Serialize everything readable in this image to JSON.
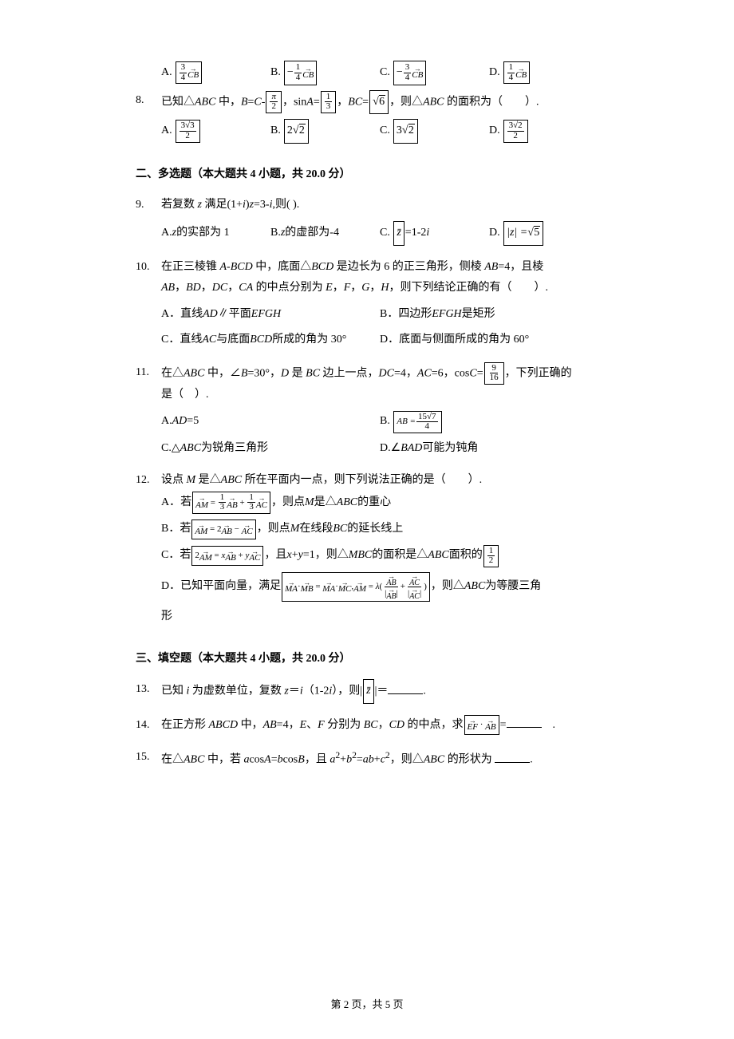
{
  "q7": {
    "A_label": "A.",
    "B_label": "B.",
    "C_label": "C.",
    "D_label": "D.",
    "A_num": "3",
    "A_den": "4",
    "A_sub": "CB",
    "B_num": "1",
    "B_den": "4",
    "B_sub": "CB",
    "B_pre": "−",
    "C_num": "3",
    "C_den": "4",
    "C_sub": "CB",
    "C_pre": "−",
    "D_num": "1",
    "D_den": "4",
    "D_sub": "CB"
  },
  "q8": {
    "num": "8.",
    "t1": "已知△",
    "t2": "ABC",
    "t3": " 中，",
    "t4": "B",
    "t5": "=",
    "t6": "C",
    "t7": "-",
    "f1n": "π",
    "f1d": "2",
    "t8": "，sin",
    "t9": "A",
    "t10": "=",
    "f2n": "1",
    "f2d": "3",
    "t11": "，",
    "t12": "BC",
    "t13": "=",
    "sq": "6",
    "t14": "，则△",
    "t15": "ABC",
    "t16": " 的面积为（　　）.",
    "A_label": "A.",
    "B_label": "B.",
    "C_label": "C.",
    "D_label": "D.",
    "A_num": "3√3",
    "A_den": "2",
    "B_v1": "2",
    "B_v2": "2",
    "C_v1": "3",
    "C_v2": "2",
    "D_num": "3√2",
    "D_den": "2"
  },
  "section2": "二、多选题（本大题共 4 小题，共 20.0 分）",
  "q9": {
    "num": "9.",
    "text": "若复数 ",
    "z": "z",
    "t2": " 满足(1+",
    "i1": "i",
    "t3": ")",
    "z2": "z",
    "t4": "=3-",
    "i2": "i",
    "t5": ",则(  ).",
    "A_label": "A.",
    "A_t1": " z",
    "A_t2": " 的实部为 1",
    "B_label": "B.",
    "B_t1": " z",
    "B_t2": " 的虚部为-4",
    "C_label": "C.",
    "C_box": "z̄",
    "C_t": "=1-2",
    "C_i": "i",
    "D_label": "D.",
    "D_box1": "|z| = ",
    "D_sq": "5"
  },
  "q10": {
    "num": "10.",
    "l1a": "在正三棱锥 ",
    "l1b": "A-BCD",
    "l1c": " 中，底面△",
    "l1d": "BCD",
    "l1e": " 是边长为 6 的正三角形，侧棱 ",
    "l1f": "AB",
    "l1g": "=4，且棱",
    "l2a": "AB",
    "l2b": "，",
    "l2c": "BD",
    "l2d": "，",
    "l2e": "DC",
    "l2f": "，",
    "l2g": "CA",
    "l2h": " 的中点分别为 ",
    "l2i": "E",
    "l2j": "，",
    "l2k": "F",
    "l2l": "，",
    "l2m": "G",
    "l2n": "，",
    "l2o": "H",
    "l2p": "，则下列结论正确的有（　　）.",
    "A_label": "A．",
    "A_t1": "直线 ",
    "A_t2": "AD",
    "A_t3": "∥平面 ",
    "A_t4": "EFGH",
    "B_label": "B．",
    "B_t1": "四边形 ",
    "B_t2": "EFGH",
    "B_t3": " 是矩形",
    "C_label": "C．",
    "C_t1": "直线 ",
    "C_t2": "AC",
    "C_t3": " 与底面 ",
    "C_t4": "BCD",
    "C_t5": " 所成的角为 30°",
    "D_label": "D．",
    "D_t": "底面与侧面所成的角为 60°"
  },
  "q11": {
    "num": "11.",
    "l1a": "在△",
    "l1b": "ABC",
    "l1c": " 中，∠",
    "l1d": "B",
    "l1e": "=30°，",
    "l1f": "D",
    "l1g": " 是 ",
    "l1h": "BC",
    "l1i": " 边上一点，",
    "l1j": "DC",
    "l1k": "=4，",
    "l1l": "AC",
    "l1m": "=6，cos",
    "l1n": "C",
    "l1o": "=",
    "f_num": "9",
    "f_den": "16",
    "l1p": "，下列正确的",
    "l2": "是（　）.",
    "A_label": "A.",
    "A_t1": " AD",
    "A_t2": "=5",
    "B_label": "B.",
    "B_b1": "AB = ",
    "B_num": "15√7",
    "B_den": "4",
    "C_label": "C.",
    "C_t1": " △",
    "C_t2": "ABC",
    "C_t3": " 为锐角三角形",
    "D_label": "D.",
    "D_t1": " ∠",
    "D_t2": "BAD",
    "D_t3": " 可能为钝角"
  },
  "q12": {
    "num": "12.",
    "l1a": "设点 ",
    "l1b": "M",
    "l1c": " 是△",
    "l1d": "ABC",
    "l1e": " 所在平面内一点，则下列说法正确的是（　　）.",
    "A_label": "A．",
    "A_t": "若",
    "A_box": "AM = ⅓AB + ⅓AC",
    "A_post1": "，则点 ",
    "A_post2": "M",
    "A_post3": " 是△",
    "A_post4": "ABC",
    "A_post5": " 的重心",
    "B_label": "B．",
    "B_t": "若",
    "B_box": "AM = 2AB − AC",
    "B_post1": "，则点 ",
    "B_post2": "M",
    "B_post3": " 在线段 ",
    "B_post4": "BC",
    "B_post5": " 的延长线上",
    "C_label": "C．",
    "C_t": "若",
    "C_box": "2AM = xAB + yAC",
    "C_post1": "，且 ",
    "C_post2": "x",
    "C_post3": "+",
    "C_post4": "y",
    "C_post5": "=1，则△",
    "C_post6": "MBC",
    "C_post7": " 的面积是△",
    "C_post8": "ABC",
    "C_post9": " 面积的",
    "C_fn": "1",
    "C_fd": "2",
    "D_label": "D．",
    "D_t": "已知平面向量，满足",
    "D_box": "MA·MB = MA·MC, AM = λ(AB/|AB| + AC/|AC|)",
    "D_post1": "，则△",
    "D_post2": "ABC",
    "D_post3": " 为等腰三角",
    "D_l2": "形"
  },
  "section3": "三、填空题（本大题共 4 小题，共 20.0 分）",
  "q13": {
    "num": "13.",
    "t1": "已知 ",
    "t2": "i",
    "t3": " 为虚数单位，复数 ",
    "t4": "z",
    "t5": "＝",
    "t6": "i",
    "t7": "（1-2",
    "t8": "i",
    "t9": "），则|",
    "box": "z̄",
    "t10": "|＝",
    "t11": "."
  },
  "q14": {
    "num": "14.",
    "t1": "在正方形 ",
    "t2": "ABCD",
    "t3": " 中，",
    "t4": "AB",
    "t5": "=4，",
    "t6": "E",
    "t7": "、",
    "t8": "F",
    "t9": " 分别为 ",
    "t10": "BC",
    "t11": "，",
    "t12": "CD",
    "t13": " 的中点，求",
    "box": "EF · AB",
    "t14": "=",
    "t15": "　."
  },
  "q15": {
    "num": "15.",
    "t1": "在△",
    "t2": "ABC",
    "t3": " 中，若 ",
    "t4": "a",
    "t5": "cos",
    "t6": "A",
    "t7": "=",
    "t8": "b",
    "t9": "cos",
    "t10": "B",
    "t11": "，且 ",
    "t12": "a",
    "sup1": "2",
    "t13": "+",
    "t14": "b",
    "sup2": "2",
    "t15": "=",
    "t16": "ab",
    "t17": "+",
    "t18": "c",
    "sup3": "2",
    "t19": "，则△",
    "t20": "ABC",
    "t21": " 的形状为 ",
    "t22": "."
  },
  "footer": "第 2 页，共 5 页"
}
